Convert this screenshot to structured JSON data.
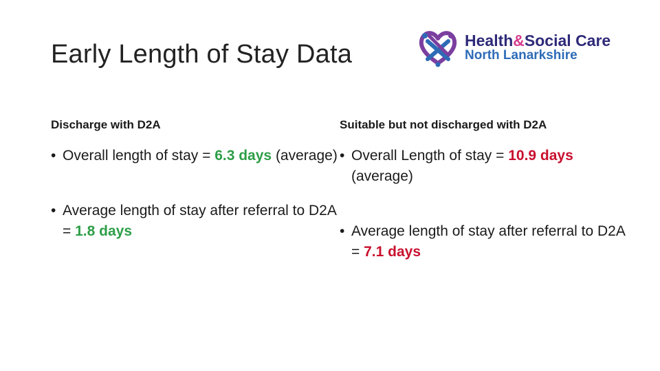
{
  "slide": {
    "title": "Early Length of Stay Data"
  },
  "logo": {
    "line1_a": "Health",
    "line1_amp": "&",
    "line1_b": "Social Care",
    "line2": "North Lanarkshire",
    "icon": "heart-knot-logo-icon",
    "colors": {
      "purple": "#7b3fa0",
      "blue": "#2e6bb7",
      "navy": "#2e2a78",
      "pink": "#d63a8c"
    }
  },
  "columns": [
    {
      "heading": "Discharge with D2A",
      "highlight_color": "#2e9e48",
      "bullets": [
        {
          "bullet": "•",
          "before": "Overall length of stay = ",
          "value": "6.3 days",
          "after": " (average)"
        },
        {
          "bullet": "•",
          "before": "Average length of stay after referral to D2A = ",
          "value": "1.8 days",
          "after": ""
        }
      ]
    },
    {
      "heading": "Suitable but not discharged with D2A",
      "highlight_color": "#c8102e",
      "bullets": [
        {
          "bullet": "•",
          "before": "Overall Length of stay = ",
          "value": "10.9 days",
          "after": " (average)"
        },
        {
          "bullet": "•",
          "before": "Average length of stay after referral to D2A = ",
          "value": "7.1 days",
          "after": ""
        }
      ]
    }
  ]
}
